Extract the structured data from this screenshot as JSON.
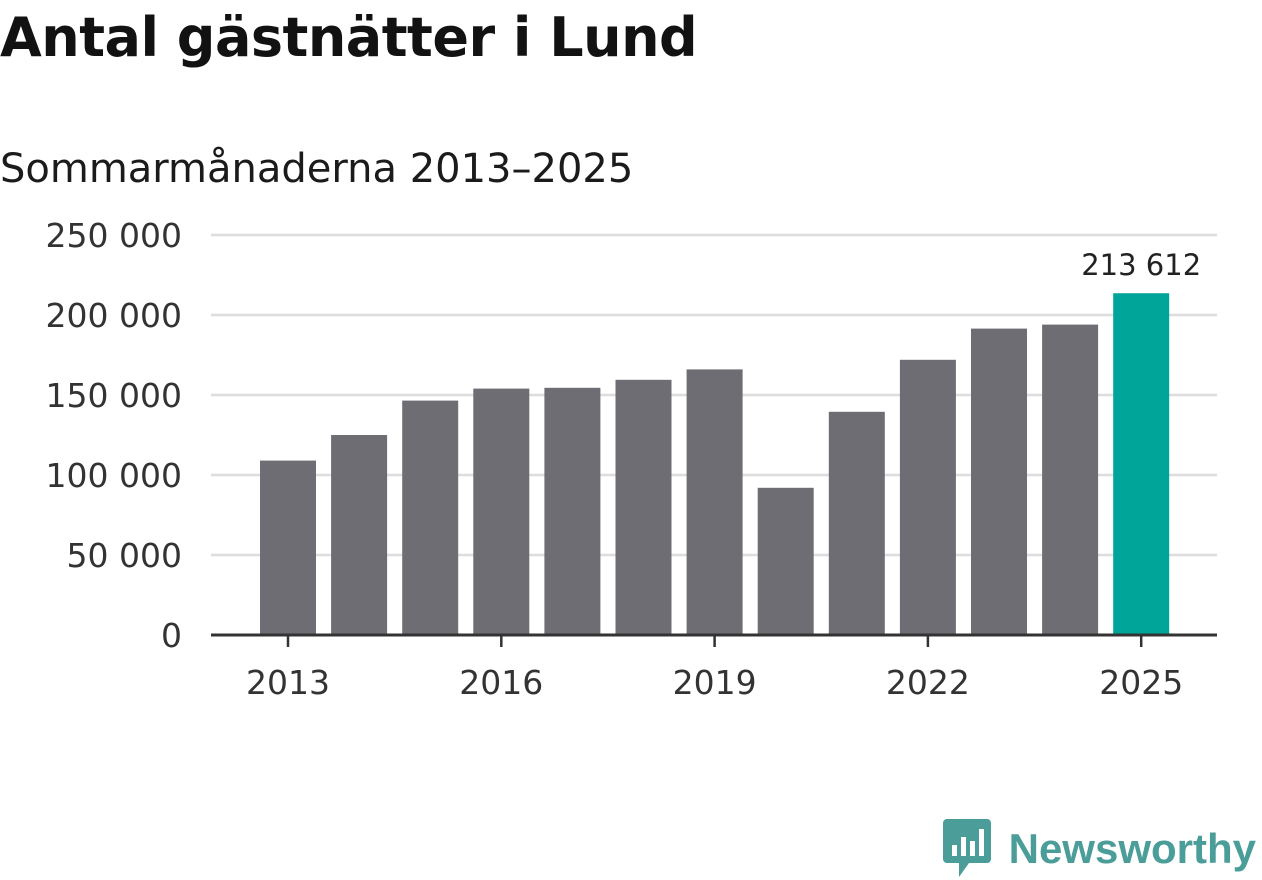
{
  "title": "Antal gästnätter i Lund",
  "subtitle": "Sommarmånaderna 2013–2025",
  "brand": {
    "name": "Newsworthy",
    "color": "#4a9d98"
  },
  "colors": {
    "bar": "#6e6d73",
    "highlight": "#00a59a",
    "grid": "#dddddd",
    "axis": "#333333"
  },
  "chart_data": {
    "type": "bar",
    "categories": [
      "2013",
      "2014",
      "2015",
      "2016",
      "2017",
      "2018",
      "2019",
      "2020",
      "2021",
      "2022",
      "2023",
      "2024",
      "2025"
    ],
    "values": [
      109000,
      125000,
      146500,
      154000,
      154500,
      159500,
      166000,
      92000,
      139500,
      172000,
      191500,
      194000,
      213612
    ],
    "highlight_index": 12,
    "data_labels": [
      {
        "index": 12,
        "text": "213 612"
      }
    ],
    "x_tick_labels": [
      "2013",
      "2016",
      "2019",
      "2022",
      "2025"
    ],
    "y_ticks": [
      0,
      50000,
      100000,
      150000,
      200000,
      250000
    ],
    "y_tick_labels": [
      "0",
      "50 000",
      "100 000",
      "150 000",
      "200 000",
      "250 000"
    ],
    "ylim": [
      0,
      250000
    ],
    "xlabel": "",
    "ylabel": "",
    "grid": true
  }
}
